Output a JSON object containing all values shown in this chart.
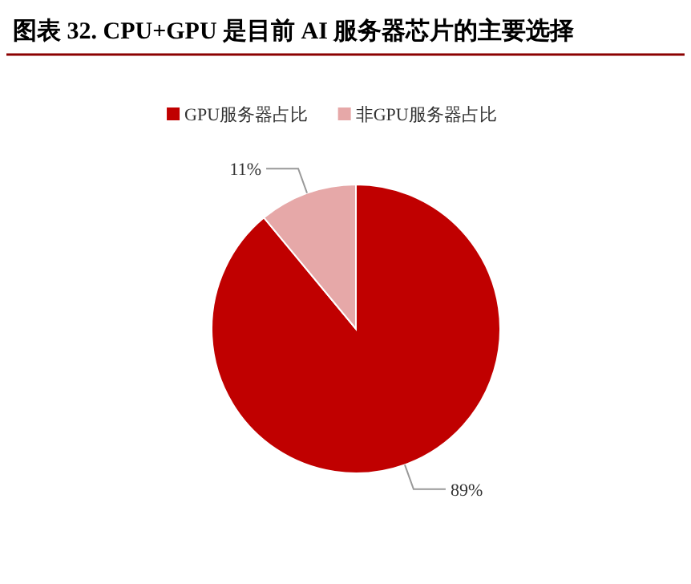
{
  "chart_data": {
    "type": "pie",
    "title": "图表 32. CPU+GPU 是目前 AI 服务器芯片的主要选择",
    "categories": [
      "GPU服务器占比",
      "非GPU服务器占比"
    ],
    "values": [
      89,
      11
    ],
    "colors": [
      "#c00000",
      "#e6a8a8"
    ],
    "value_labels": [
      "89%",
      "11%"
    ],
    "legend": "top"
  }
}
